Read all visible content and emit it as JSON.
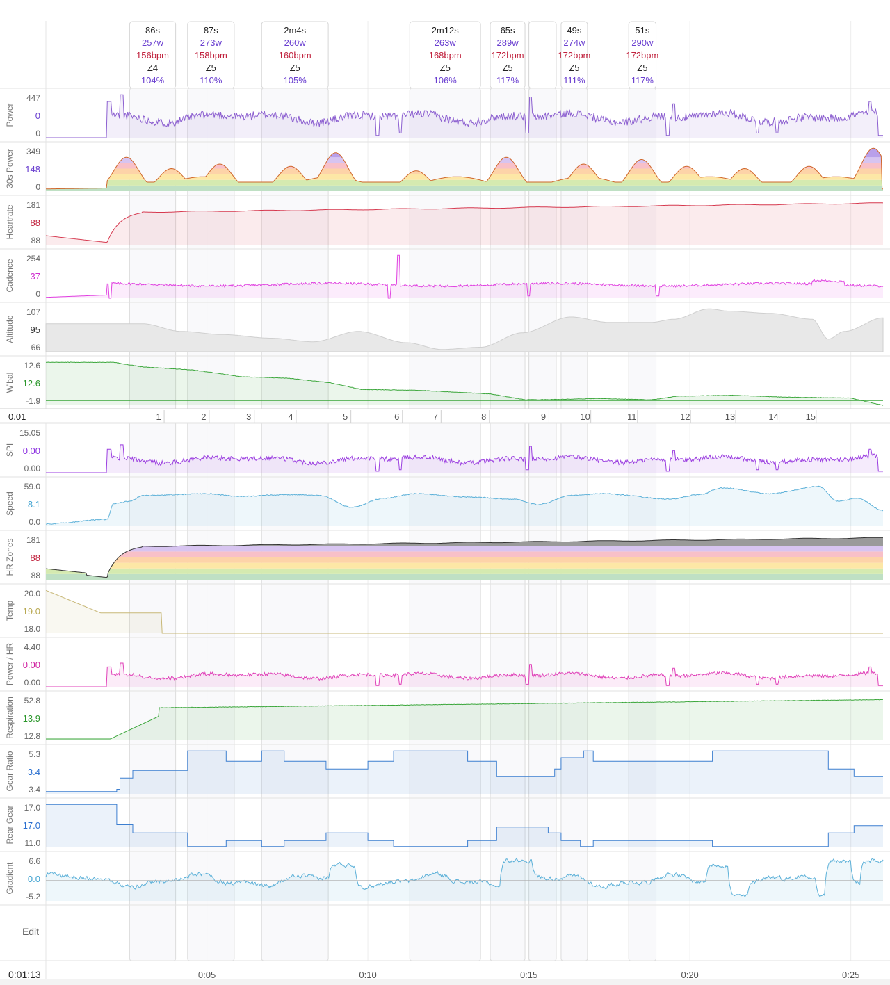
{
  "chart_data": {
    "type": "line",
    "elapsed_label": "0:01:13",
    "edit_label": "Edit",
    "x_axis_minutes": [
      0,
      26
    ],
    "x_ticks": [
      {
        "label": "0:05",
        "min": 5
      },
      {
        "label": "0:10",
        "min": 10
      },
      {
        "label": "0:15",
        "min": 15
      },
      {
        "label": "0:20",
        "min": 20
      },
      {
        "label": "0:25",
        "min": 25
      }
    ],
    "intervals": [
      {
        "dur": "86s",
        "power": "257w",
        "hr": "156bpm",
        "zone": "Z4",
        "pct": "104%",
        "start_min": 2.6,
        "end_min": 4.03
      },
      {
        "dur": "87s",
        "power": "273w",
        "hr": "158bpm",
        "zone": "Z5",
        "pct": "110%",
        "start_min": 4.4,
        "end_min": 5.85
      },
      {
        "dur": "2m4s",
        "power": "260w",
        "hr": "160bpm",
        "zone": "Z5",
        "pct": "105%",
        "start_min": 6.7,
        "end_min": 8.77
      },
      {
        "dur": "2m12s",
        "power": "263w",
        "hr": "168bpm",
        "zone": "Z5",
        "pct": "106%",
        "start_min": 11.3,
        "end_min": 13.5
      },
      {
        "dur": "65s",
        "power": "289w",
        "hr": "172bpm",
        "zone": "Z5",
        "pct": "117%",
        "start_min": 13.8,
        "end_min": 14.88
      },
      {
        "dur": "",
        "power": "",
        "hr": "",
        "zone": "",
        "pct": "",
        "start_min": 15.0,
        "end_min": 15.85
      },
      {
        "dur": "49s",
        "power": "274w",
        "hr": "172bpm",
        "zone": "Z5",
        "pct": "111%",
        "start_min": 16.0,
        "end_min": 16.82
      },
      {
        "dur": "51s",
        "power": "290w",
        "hr": "172bpm",
        "zone": "Z5",
        "pct": "117%",
        "start_min": 18.1,
        "end_min": 18.95
      }
    ],
    "laps": {
      "label_value": "0.01",
      "markers": [
        {
          "n": "1",
          "min": 3.5
        },
        {
          "n": "2",
          "min": 4.9
        },
        {
          "n": "3",
          "min": 6.3
        },
        {
          "n": "4",
          "min": 7.6
        },
        {
          "n": "5",
          "min": 9.3
        },
        {
          "n": "6",
          "min": 10.9
        },
        {
          "n": "7",
          "min": 12.1
        },
        {
          "n": "8",
          "min": 13.6
        },
        {
          "n": "9",
          "min": 15.45
        },
        {
          "n": "10",
          "min": 16.75
        },
        {
          "n": "11",
          "min": 18.2
        },
        {
          "n": "12",
          "min": 19.85
        },
        {
          "n": "13",
          "min": 21.25
        },
        {
          "n": "14",
          "min": 22.6
        },
        {
          "n": "15",
          "min": 23.75
        }
      ]
    },
    "panels": [
      {
        "label": "Power",
        "top": "447",
        "mid": "0",
        "bot": "0",
        "color": "#8c5fd0",
        "kind": "power"
      },
      {
        "label": "30s Power",
        "top": "349",
        "mid": "148",
        "bot": "0",
        "color": "#7a4fd0",
        "kind": "zones30"
      },
      {
        "label": "Heartrate",
        "top": "181",
        "mid": "88",
        "bot": "88",
        "color": "#d6394f",
        "kind": "hr"
      },
      {
        "label": "Cadence",
        "top": "254",
        "mid": "37",
        "bot": "0",
        "color": "#e040e0",
        "kind": "cadence"
      },
      {
        "label": "Altitude",
        "top": "107",
        "mid": "95",
        "bot": "66",
        "color": "#bdbdbd",
        "kind": "altitude"
      },
      {
        "label": "W'bal",
        "top": "12.6",
        "mid": "12.6",
        "bot": "-1.9",
        "color": "#3aa63a",
        "kind": "wbal"
      },
      {
        "label": "SPI",
        "top": "15.05",
        "mid": "0.00",
        "bot": "0.00",
        "color": "#9b3ee0",
        "kind": "spi"
      },
      {
        "label": "Speed",
        "top": "59.0",
        "mid": "8.1",
        "bot": "0.0",
        "color": "#5bb0d8",
        "kind": "speed"
      },
      {
        "label": "HR Zones",
        "top": "181",
        "mid": "88",
        "bot": "88",
        "color": "#d6394f",
        "kind": "hrzones"
      },
      {
        "label": "Temp",
        "top": "20.0",
        "mid": "19.0",
        "bot": "18.0",
        "color": "#c8b878",
        "kind": "temp"
      },
      {
        "label": "Power / HR",
        "top": "4.40",
        "mid": "0.00",
        "bot": "0.00",
        "color": "#e040b8",
        "kind": "pwrhr"
      },
      {
        "label": "Respiration",
        "top": "52.8",
        "mid": "13.9",
        "bot": "12.8",
        "color": "#3aa63a",
        "kind": "resp"
      },
      {
        "label": "Gear Ratio",
        "top": "5.3",
        "mid": "3.4",
        "bot": "3.4",
        "color": "#3d7fd0",
        "kind": "gear"
      },
      {
        "label": "Rear Gear",
        "top": "17.0",
        "mid": "17.0",
        "bot": "11.0",
        "color": "#3d7fd0",
        "kind": "reargear"
      },
      {
        "label": "Gradient",
        "top": "6.6",
        "mid": "0.0",
        "bot": "-5.2",
        "color": "#5bb0d8",
        "kind": "gradient"
      }
    ],
    "mid_label_colors": {
      "Power": "#6a3fd0",
      "30s Power": "#6a3fd0",
      "Heartrate": "#c0203c",
      "Cadence": "#d030d0",
      "Altitude": "#333333",
      "W'bal": "#2a962a",
      "SPI": "#8a2ee0",
      "Speed": "#3aa0d0",
      "HR Zones": "#c0203c",
      "Temp": "#b8a850",
      "Power / HR": "#d020a0",
      "Respiration": "#2a962a",
      "Gear Ratio": "#2a6fd0",
      "Rear Gear": "#2a6fd0",
      "Gradient": "#3aa0d0"
    }
  }
}
